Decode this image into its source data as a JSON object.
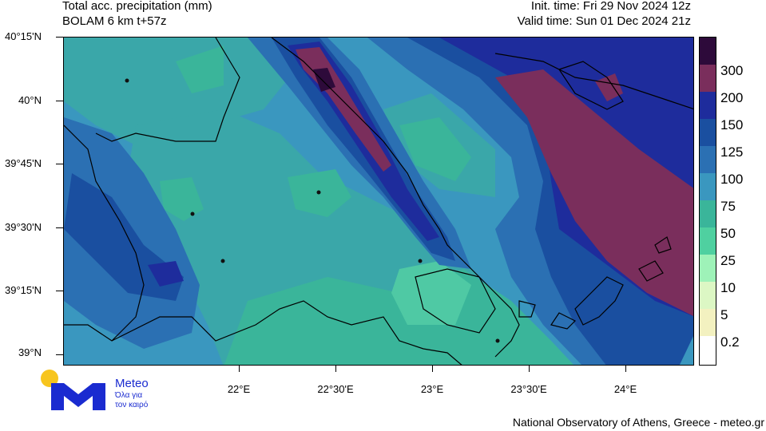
{
  "header": {
    "title_line1": "Total acc. precipitation (mm)",
    "title_line2": "BOLAM 6 km t+57z",
    "init_time": "Init. time: Fri 29 Nov 2024 12z",
    "valid_time": "Valid time: Sun 01 Dec 2024 21z"
  },
  "axes": {
    "lat_labels": [
      "40°15'N",
      "40°N",
      "39°45'N",
      "39°30'N",
      "39°15'N",
      "39°N"
    ],
    "lon_labels": [
      "22°E",
      "22°30'E",
      "23°E",
      "23°30'E",
      "24°E"
    ]
  },
  "legend": {
    "labels": [
      "300",
      "200",
      "150",
      "125",
      "100",
      "75",
      "50",
      "25",
      "10",
      "5",
      "0.2"
    ],
    "colors": [
      "#2d0a3a",
      "#7a2e5c",
      "#1e2c9c",
      "#1a4fa0",
      "#2b70b3",
      "#3a97bf",
      "#3ab59a",
      "#4fd0a0",
      "#9ef2b8",
      "#dcf7c4",
      "#f3f1c0",
      "#ffffff"
    ]
  },
  "logo": {
    "name": "Meteo",
    "tagline_line1": "Όλα για",
    "tagline_line2": "τον καιρό"
  },
  "footer": {
    "credit": "National Observatory of Athens, Greece - meteo.gr"
  }
}
